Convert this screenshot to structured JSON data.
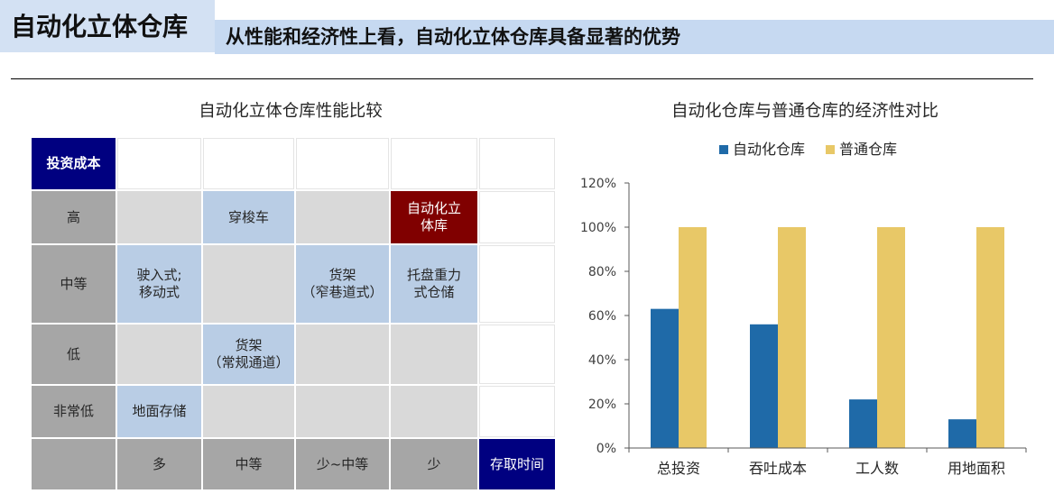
{
  "header": {
    "title": "自动化立体仓库",
    "banner": "从性能和经济性上看，自动化立体仓库具备显著的优势"
  },
  "colors": {
    "title_bg": "#d3e1f3",
    "banner_bg": "#c6d9f1",
    "navy": "#000080",
    "header_gray": "#a6a6a6",
    "rule": "#000000"
  },
  "matrix": {
    "title": "自动化立体仓库性能比较",
    "y_axis_header": "投资成本",
    "x_axis_header": "存取时间",
    "column_labels": [
      "多",
      "中等",
      "少~中等",
      "少"
    ],
    "rows": [
      {
        "label": "高",
        "cells": [
          {
            "fill": "#d9d9d9"
          },
          {
            "fill": "#b9cde5",
            "text": "穿梭车"
          },
          {
            "fill": "#d9d9d9"
          },
          {
            "fill": "#800000",
            "text": "自动化立\n体库",
            "text_color": "#ffffff"
          }
        ]
      },
      {
        "label": "中等",
        "cells": [
          {
            "fill": "#b9cde5",
            "text": "驶入式;\n移动式"
          },
          {
            "fill": "#d9d9d9"
          },
          {
            "fill": "#b9cde5",
            "text": "货架\n（窄巷道式）"
          },
          {
            "fill": "#b9cde5",
            "text": "托盘重力\n式仓储"
          }
        ]
      },
      {
        "label": "低",
        "cells": [
          {
            "fill": "#d9d9d9"
          },
          {
            "fill": "#b9cde5",
            "text": "货架\n（常规通道）"
          },
          {
            "fill": "#d9d9d9"
          },
          {
            "fill": "#d9d9d9"
          }
        ]
      },
      {
        "label": "非常低",
        "cells": [
          {
            "fill": "#b9cde5",
            "text": "地面存储"
          },
          {
            "fill": "#d9d9d9"
          },
          {
            "fill": "#d9d9d9"
          },
          {
            "fill": "#d9d9d9"
          }
        ]
      }
    ]
  },
  "chart_data": {
    "type": "bar",
    "title": "自动化仓库与普通仓库的经济性对比",
    "categories": [
      "总投资",
      "吞吐成本",
      "工人数",
      "用地面积"
    ],
    "series": [
      {
        "name": "自动化仓库",
        "color": "#1f6aa8",
        "values": [
          63,
          56,
          22,
          13
        ]
      },
      {
        "name": "普通仓库",
        "color": "#e8c867",
        "values": [
          100,
          100,
          100,
          100
        ]
      }
    ],
    "ylim": [
      0,
      120
    ],
    "yticks": [
      0,
      20,
      40,
      60,
      80,
      100,
      120
    ],
    "ytick_labels": [
      "0%",
      "20%",
      "40%",
      "60%",
      "80%",
      "100%",
      "120%"
    ],
    "grid": false,
    "legend": "top"
  }
}
